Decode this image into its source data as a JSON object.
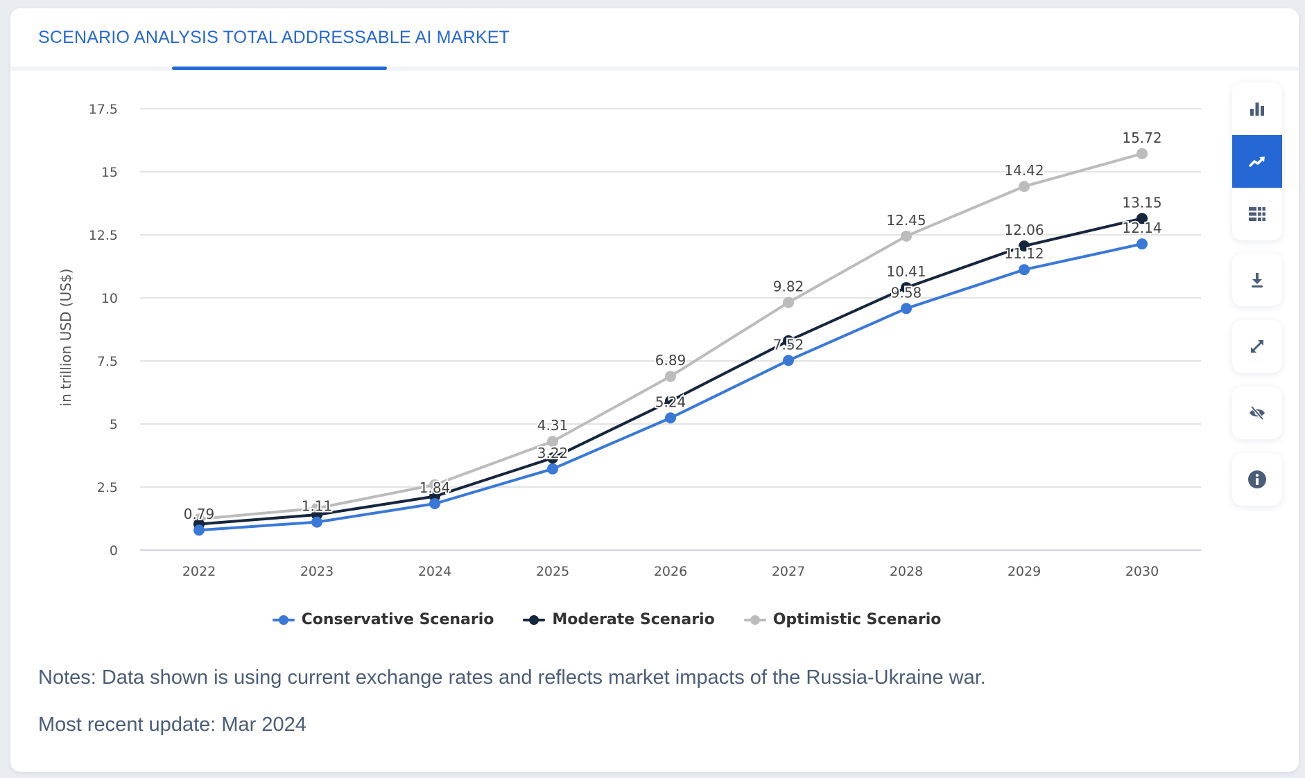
{
  "header": {
    "title": "SCENARIO ANALYSIS TOTAL ADDRESSABLE AI MARKET"
  },
  "toolbar": {
    "buttons": [
      {
        "icon": "bar-chart-icon",
        "active": false
      },
      {
        "icon": "line-chart-icon",
        "active": true
      },
      {
        "icon": "table-icon",
        "active": false
      },
      {
        "icon": "download-icon",
        "active": false
      },
      {
        "icon": "fullscreen-icon",
        "active": false
      },
      {
        "icon": "hide-icon",
        "active": false
      },
      {
        "icon": "info-icon",
        "active": false
      }
    ],
    "accent_color": "#2667d6",
    "icon_color": "#4a5d7a"
  },
  "chart_data": {
    "type": "line",
    "title": "",
    "xlabel": "",
    "ylabel": "in trillion USD (US$)",
    "ylim": [
      0,
      17.5
    ],
    "yticks": [
      0,
      2.5,
      5,
      7.5,
      10,
      12.5,
      15,
      17.5
    ],
    "ytick_labels": [
      "0",
      "2.5",
      "5",
      "7.5",
      "10",
      "12.5",
      "15",
      "17.5"
    ],
    "categories": [
      "2022",
      "2023",
      "2024",
      "2025",
      "2026",
      "2027",
      "2028",
      "2029",
      "2030"
    ],
    "grid": true,
    "legend_position": "bottom",
    "series": [
      {
        "name": "Conservative Scenario",
        "color": "#3a78d8",
        "values": [
          0.79,
          1.11,
          1.84,
          3.22,
          5.24,
          7.52,
          9.58,
          11.12,
          12.14
        ],
        "labels": [
          "0.79",
          "1.11",
          "1.84",
          "3.22",
          "5.24",
          "7.52",
          "9.58",
          "11.12",
          "12.14"
        ]
      },
      {
        "name": "Moderate Scenario",
        "color": "#16263d",
        "values": [
          1.03,
          1.4,
          2.13,
          3.65,
          5.91,
          8.3,
          10.41,
          12.06,
          13.15
        ],
        "labels": [
          null,
          null,
          null,
          null,
          null,
          null,
          "10.41",
          "12.06",
          "13.15"
        ]
      },
      {
        "name": "Optimistic Scenario",
        "color": "#bcbcbc",
        "values": [
          1.23,
          1.66,
          2.59,
          4.31,
          6.89,
          9.82,
          12.45,
          14.42,
          15.72
        ],
        "labels": [
          null,
          null,
          null,
          "4.31",
          "6.89",
          "9.82",
          "12.45",
          "14.42",
          "15.72"
        ]
      }
    ]
  },
  "footer": {
    "notes": "Notes: Data shown is using current exchange rates and reflects market impacts of the Russia-Ukraine war.",
    "update": "Most recent update: Mar 2024"
  }
}
